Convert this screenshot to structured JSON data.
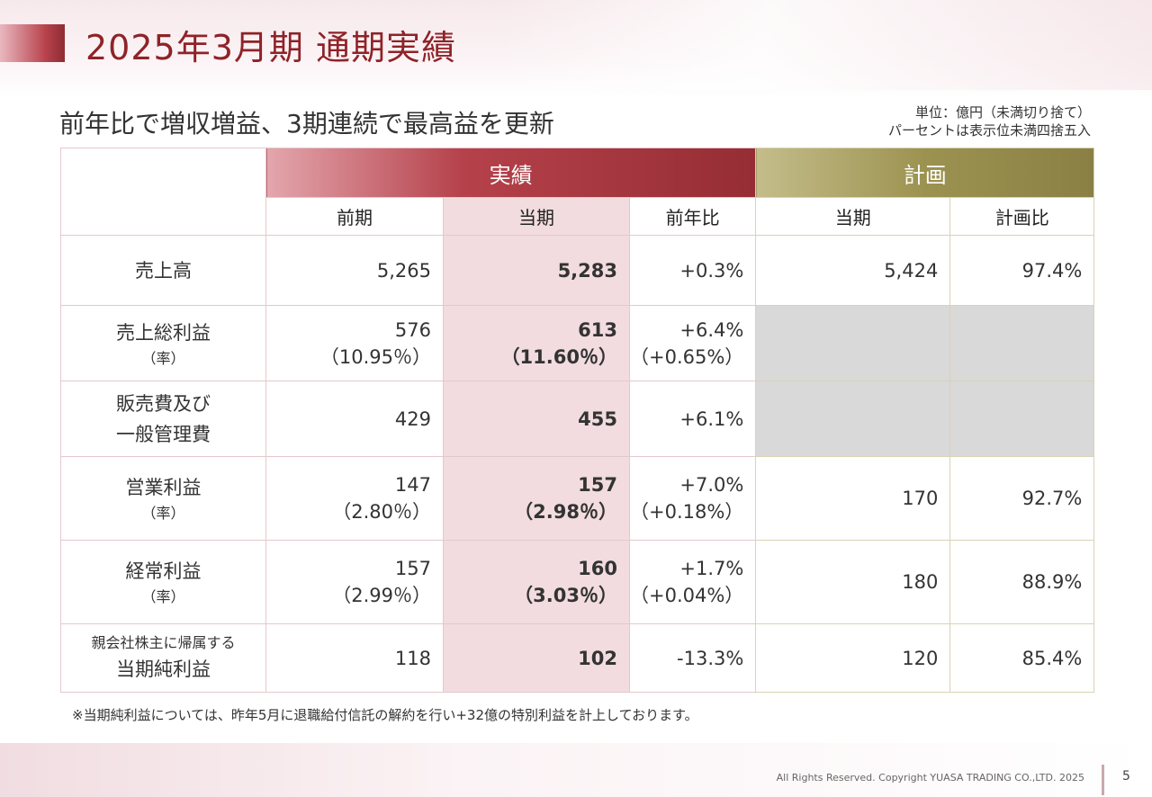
{
  "header": {
    "title": "2025年3月期  通期実績",
    "subtitle": "前年比で増収増益、3期連続で最高益を更新",
    "unit_line1": "単位：億円（未満切り捨て）",
    "unit_line2": "パーセントは表示位未満四捨五入"
  },
  "table": {
    "group_actual": "実績",
    "group_plan": "計画",
    "col_prev": "前期",
    "col_current": "当期",
    "col_yoy": "前年比",
    "col_plan_current": "当期",
    "col_plan_ratio": "計画比",
    "rows": [
      {
        "label": "売上高",
        "prev": "5,265",
        "current": "5,283",
        "yoy": "+0.3%",
        "plan": "5,424",
        "plan_ratio": "97.4%"
      },
      {
        "label": "売上総利益",
        "label_sub": "（率）",
        "prev": "576",
        "prev_rate": "（10.95％）",
        "current": "613",
        "current_rate": "（11.60％）",
        "yoy": "+6.4%",
        "yoy_rate": "（+0.65%）"
      },
      {
        "label_line1": "販売費及び",
        "label_line2": "一般管理費",
        "prev": "429",
        "current": "455",
        "yoy": "+6.1%"
      },
      {
        "label": "営業利益",
        "label_sub": "（率）",
        "prev": "147",
        "prev_rate": "（2.80％）",
        "current": "157",
        "current_rate": "（2.98％）",
        "yoy": "+7.0%",
        "yoy_rate": "（+0.18%）",
        "plan": "170",
        "plan_ratio": "92.7%"
      },
      {
        "label": "経常利益",
        "label_sub": "（率）",
        "prev": "157",
        "prev_rate": "（2.99％）",
        "current": "160",
        "current_rate": "（3.03％）",
        "yoy": "+1.7%",
        "yoy_rate": "（+0.04%）",
        "plan": "180",
        "plan_ratio": "88.9%"
      },
      {
        "label_small": "親会社株主に帰属する",
        "label": "当期純利益",
        "prev": "118",
        "current": "102",
        "yoy": "-13.3%",
        "plan": "120",
        "plan_ratio": "85.4%"
      }
    ]
  },
  "footnote": "※当期純利益については、昨年5月に退職給付信託の解約を行い+32億の特別利益を計上しております。",
  "footer": {
    "copyright": "All Rights Reserved. Copyright  YUASA TRADING CO.,LTD. 2025",
    "page_number": "5"
  }
}
